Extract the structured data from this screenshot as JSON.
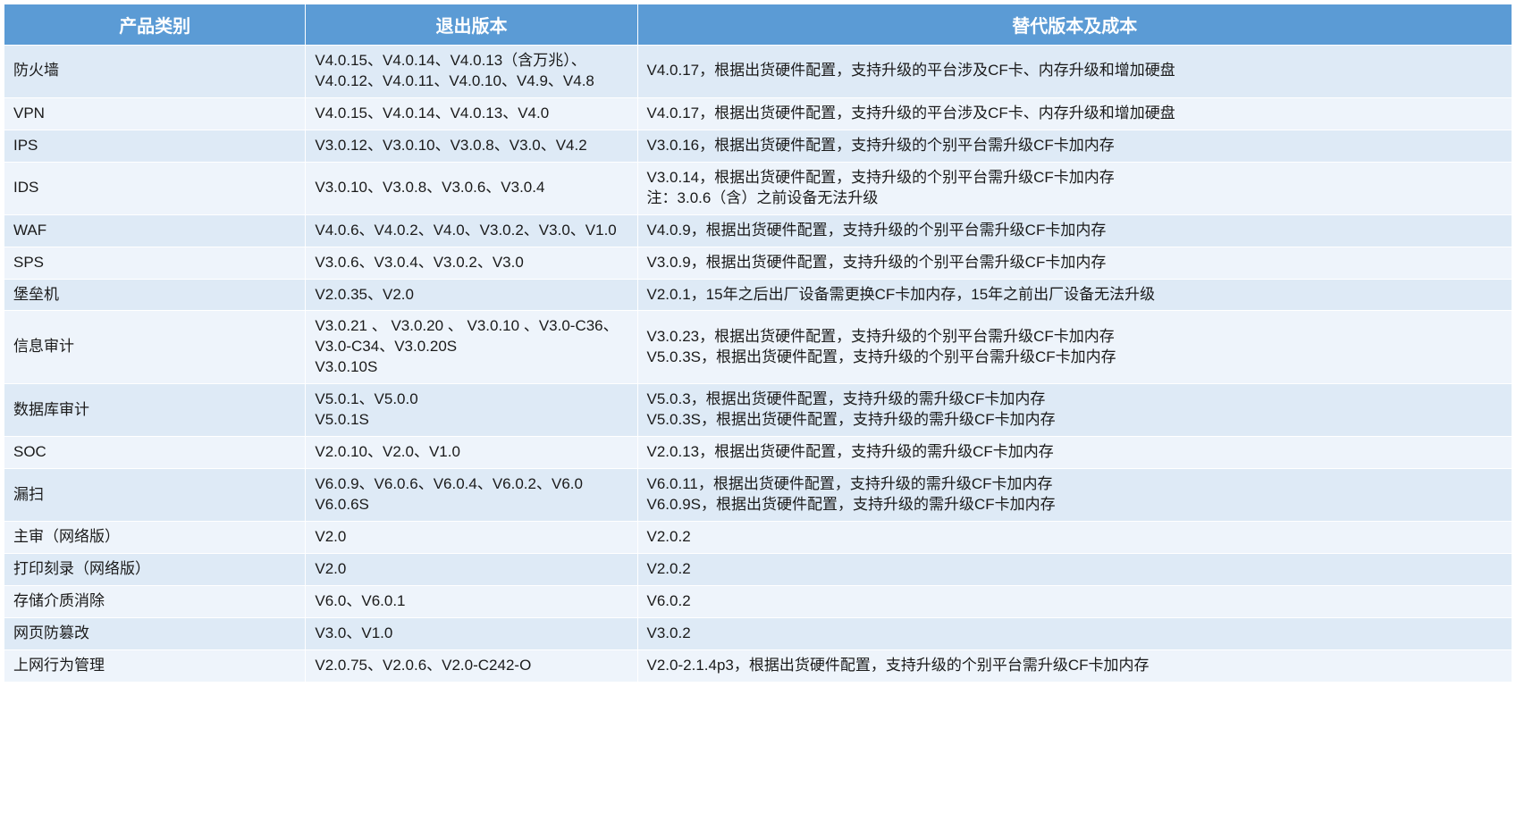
{
  "table": {
    "header_bg": "#5b9bd5",
    "header_fg": "#ffffff",
    "row_odd_bg": "#deeaf6",
    "row_even_bg": "#eef4fb",
    "border_color": "#ffffff",
    "header_fontsize": 20,
    "body_fontsize": 17,
    "columns": [
      "产品类别",
      "退出版本",
      "替代版本及成本"
    ],
    "col_widths_pct": [
      20,
      22,
      58
    ],
    "rows": [
      {
        "product": "防火墙",
        "retired": "V4.0.15、V4.0.14、V4.0.13（含万兆）、V4.0.12、V4.0.11、V4.0.10、V4.9、V4.8",
        "replacement": "V4.0.17，根据出货硬件配置，支持升级的平台涉及CF卡、内存升级和增加硬盘"
      },
      {
        "product": "VPN",
        "retired": "V4.0.15、V4.0.14、V4.0.13、V4.0",
        "replacement": "V4.0.17，根据出货硬件配置，支持升级的平台涉及CF卡、内存升级和增加硬盘"
      },
      {
        "product": "IPS",
        "retired": "V3.0.12、V3.0.10、V3.0.8、V3.0、V4.2",
        "replacement": "V3.0.16，根据出货硬件配置，支持升级的个别平台需升级CF卡加内存"
      },
      {
        "product": "IDS",
        "retired": "V3.0.10、V3.0.8、V3.0.6、V3.0.4",
        "replacement": "V3.0.14，根据出货硬件配置，支持升级的个别平台需升级CF卡加内存\n注：3.0.6（含）之前设备无法升级"
      },
      {
        "product": "WAF",
        "retired": "V4.0.6、V4.0.2、V4.0、V3.0.2、V3.0、V1.0",
        "replacement": "V4.0.9，根据出货硬件配置，支持升级的个别平台需升级CF卡加内存"
      },
      {
        "product": "SPS",
        "retired": "V3.0.6、V3.0.4、V3.0.2、V3.0",
        "replacement": "V3.0.9，根据出货硬件配置，支持升级的个别平台需升级CF卡加内存"
      },
      {
        "product": "堡垒机",
        "retired": "V2.0.35、V2.0",
        "replacement": "V2.0.1，15年之后出厂设备需更换CF卡加内存，15年之前出厂设备无法升级"
      },
      {
        "product": "信息审计",
        "retired": "V3.0.21 、 V3.0.20 、 V3.0.10 、V3.0-C36、V3.0-C34、V3.0.20S\nV3.0.10S",
        "replacement": "V3.0.23，根据出货硬件配置，支持升级的个别平台需升级CF卡加内存\nV5.0.3S，根据出货硬件配置，支持升级的个别平台需升级CF卡加内存"
      },
      {
        "product": "数据库审计",
        "retired": "V5.0.1、V5.0.0\nV5.0.1S",
        "replacement": "V5.0.3，根据出货硬件配置，支持升级的需升级CF卡加内存\nV5.0.3S，根据出货硬件配置，支持升级的需升级CF卡加内存"
      },
      {
        "product": "SOC",
        "retired": "V2.0.10、V2.0、V1.0",
        "replacement": "V2.0.13，根据出货硬件配置，支持升级的需升级CF卡加内存"
      },
      {
        "product": "漏扫",
        "retired": "V6.0.9、V6.0.6、V6.0.4、V6.0.2、V6.0\nV6.0.6S",
        "replacement": "V6.0.11，根据出货硬件配置，支持升级的需升级CF卡加内存\nV6.0.9S，根据出货硬件配置，支持升级的需升级CF卡加内存"
      },
      {
        "product": "主审（网络版）",
        "retired": "V2.0",
        "replacement": "V2.0.2"
      },
      {
        "product": "打印刻录（网络版）",
        "retired": "V2.0",
        "replacement": "V2.0.2"
      },
      {
        "product": "存储介质消除",
        "retired": "V6.0、V6.0.1",
        "replacement": "V6.0.2"
      },
      {
        "product": "网页防篡改",
        "retired": "V3.0、V1.0",
        "replacement": "V3.0.2"
      },
      {
        "product": "上网行为管理",
        "retired": "V2.0.75、V2.0.6、V2.0-C242-O",
        "replacement": "V2.0-2.1.4p3，根据出货硬件配置，支持升级的个别平台需升级CF卡加内存"
      }
    ]
  }
}
